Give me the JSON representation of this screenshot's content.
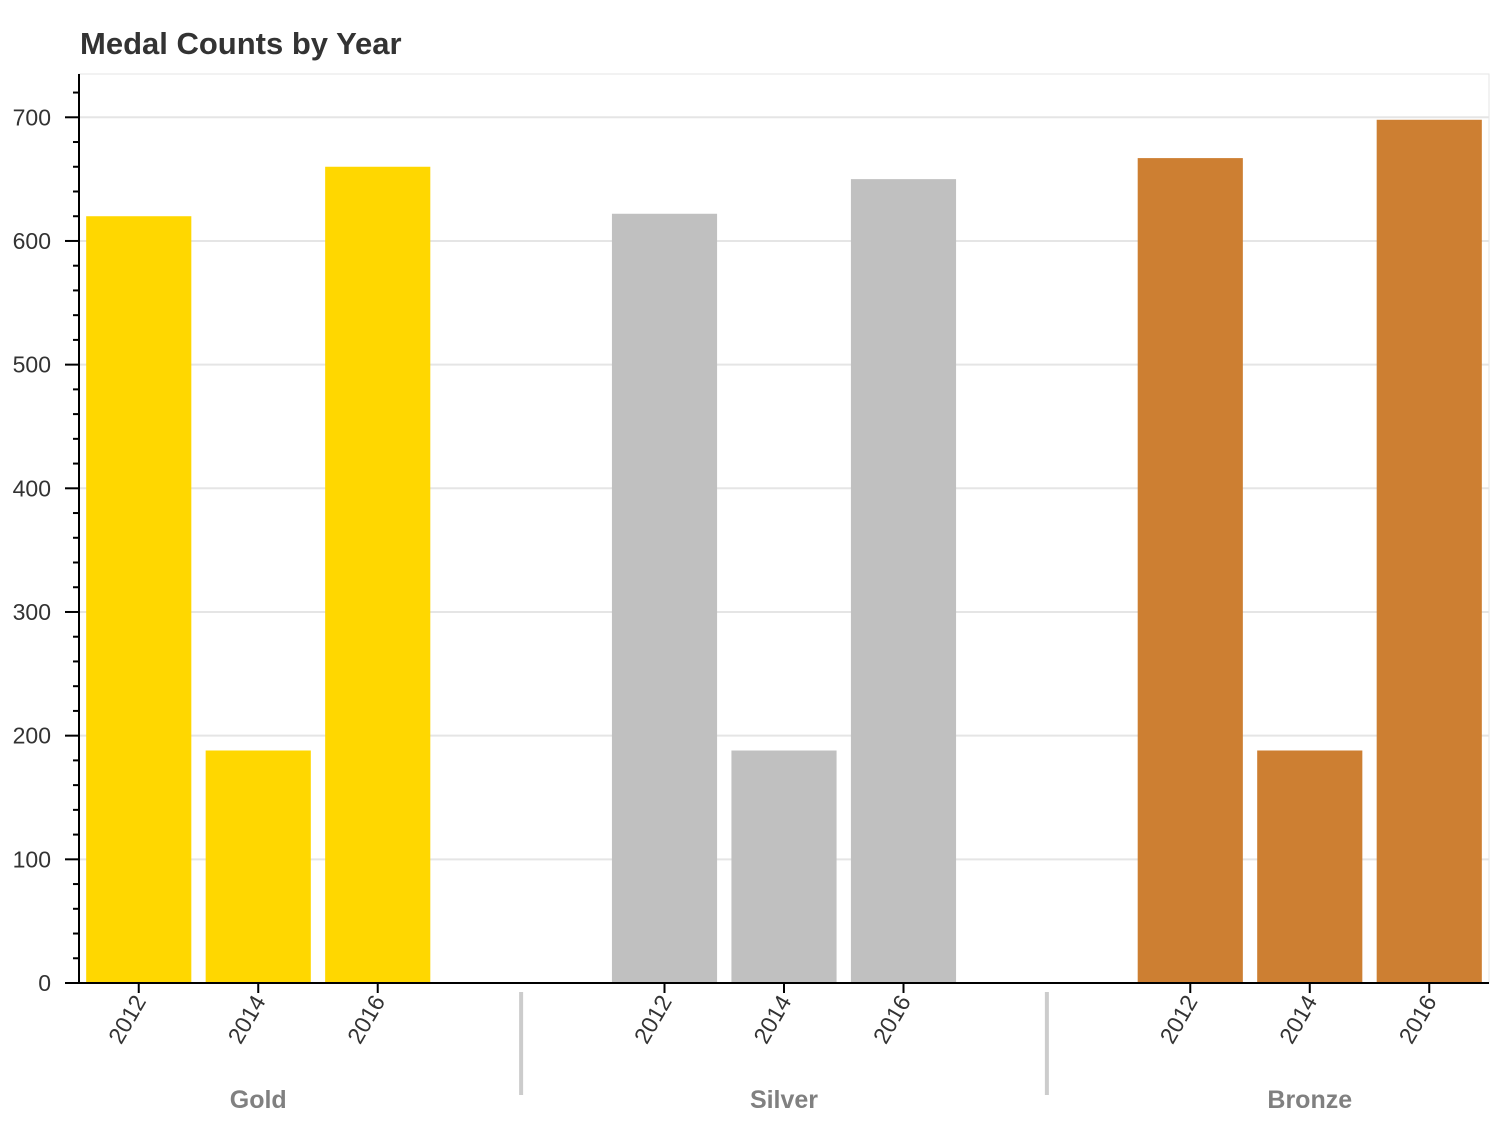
{
  "chart_data": {
    "type": "bar",
    "title": "Medal Counts by Year",
    "xlabel": "",
    "ylabel": "",
    "ylim": [
      0,
      735
    ],
    "yticks": [
      0,
      100,
      200,
      300,
      400,
      500,
      600,
      700
    ],
    "grid": true,
    "legend": "none",
    "groups": [
      {
        "name": "Gold",
        "color": "#FFD700",
        "bars": [
          {
            "year": "2012",
            "value": 620
          },
          {
            "year": "2014",
            "value": 188
          },
          {
            "year": "2016",
            "value": 660
          }
        ]
      },
      {
        "name": "Silver",
        "color": "#C0C0C0",
        "bars": [
          {
            "year": "2012",
            "value": 622
          },
          {
            "year": "2014",
            "value": 188
          },
          {
            "year": "2016",
            "value": 650
          }
        ]
      },
      {
        "name": "Bronze",
        "color": "#CD7F32",
        "bars": [
          {
            "year": "2012",
            "value": 667
          },
          {
            "year": "2014",
            "value": 188
          },
          {
            "year": "2016",
            "value": 698
          }
        ]
      }
    ]
  }
}
